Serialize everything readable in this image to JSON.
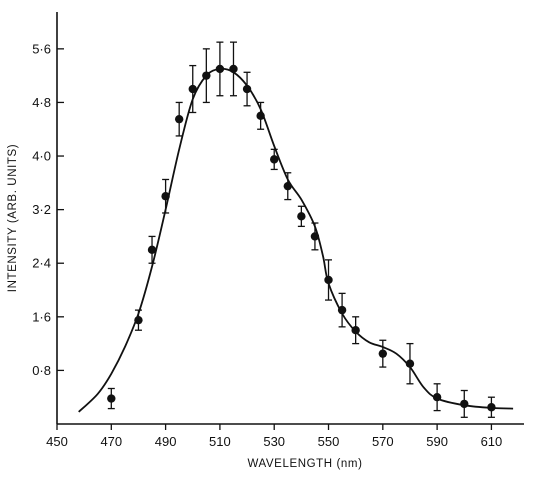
{
  "chart_data": {
    "type": "scatter",
    "xlabel": "WAVELENGTH (nm)",
    "ylabel": "INTENSITY (ARB. UNITS)",
    "xlim": [
      450,
      622
    ],
    "ylim": [
      0,
      6.15
    ],
    "x_ticks": [
      450,
      470,
      490,
      510,
      530,
      550,
      570,
      590,
      610
    ],
    "x_tick_labels": [
      "450",
      "470",
      "490",
      "510",
      "530",
      "550",
      "570",
      "590",
      "610"
    ],
    "y_ticks": [
      0.8,
      1.6,
      2.4,
      3.2,
      4.0,
      4.8,
      5.6
    ],
    "y_tick_labels": [
      "0·8",
      "1·6",
      "2·4",
      "3·2",
      "4·0",
      "4·8",
      "5·6"
    ],
    "grid": false,
    "legend": "none",
    "series": [
      {
        "kind": "measured points with error bars",
        "x": [
          470,
          480,
          485,
          490,
          495,
          500,
          505,
          510,
          515,
          520,
          525,
          530,
          535,
          540,
          545,
          550,
          555,
          560,
          570,
          580,
          590,
          600,
          610
        ],
        "y": [
          0.38,
          1.55,
          2.6,
          3.4,
          4.55,
          5.0,
          5.2,
          5.3,
          5.3,
          5.0,
          4.6,
          3.95,
          3.55,
          3.1,
          2.8,
          2.15,
          1.7,
          1.4,
          1.05,
          0.9,
          0.4,
          0.3,
          0.25
        ],
        "err": [
          0.15,
          0.15,
          0.2,
          0.25,
          0.25,
          0.35,
          0.4,
          0.4,
          0.4,
          0.25,
          0.2,
          0.15,
          0.2,
          0.15,
          0.2,
          0.3,
          0.25,
          0.2,
          0.2,
          0.3,
          0.2,
          0.2,
          0.15
        ]
      },
      {
        "kind": "fitted curve",
        "x": [
          458,
          465,
          470,
          475,
          480,
          485,
          490,
          495,
          500,
          505,
          510,
          515,
          520,
          525,
          530,
          535,
          540,
          545,
          548,
          550,
          555,
          560,
          565,
          570,
          575,
          580,
          585,
          590,
          600,
          610,
          618
        ],
        "y": [
          0.18,
          0.45,
          0.75,
          1.15,
          1.65,
          2.35,
          3.2,
          4.1,
          4.85,
          5.2,
          5.3,
          5.25,
          5.05,
          4.7,
          4.15,
          3.65,
          3.35,
          2.95,
          2.5,
          2.1,
          1.65,
          1.38,
          1.22,
          1.15,
          1.05,
          0.85,
          0.55,
          0.38,
          0.28,
          0.24,
          0.23
        ]
      }
    ]
  }
}
